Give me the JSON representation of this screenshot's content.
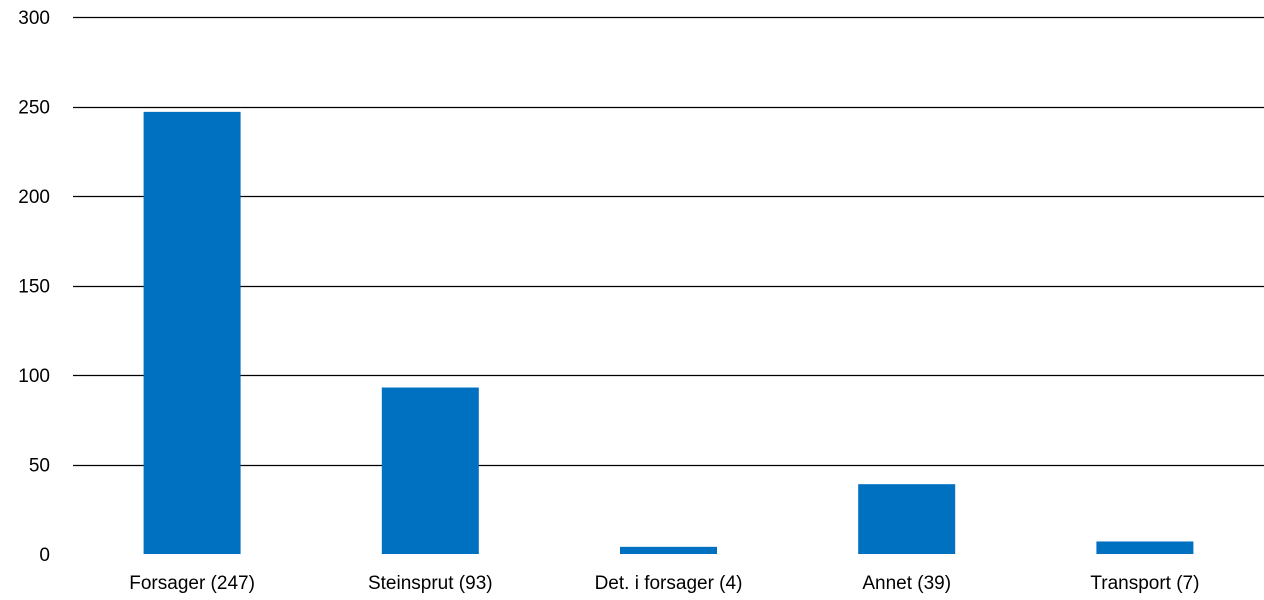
{
  "chart_data": {
    "type": "bar",
    "categories": [
      "Forsager (247)",
      "Steinsprut (93)",
      "Det. i forsager (4)",
      "Annet (39)",
      "Transport (7)"
    ],
    "values": [
      247,
      93,
      4,
      39,
      7
    ],
    "title": "",
    "xlabel": "",
    "ylabel": "",
    "ylim": [
      0,
      300
    ],
    "yticks": [
      0,
      50,
      100,
      150,
      200,
      250,
      300
    ],
    "ytick_labels": [
      "0",
      "50",
      "100",
      "150",
      "200",
      "250",
      "300"
    ],
    "grid": true,
    "legend": "none",
    "bar_color": "#0070C0",
    "grid_color": "#000000"
  }
}
